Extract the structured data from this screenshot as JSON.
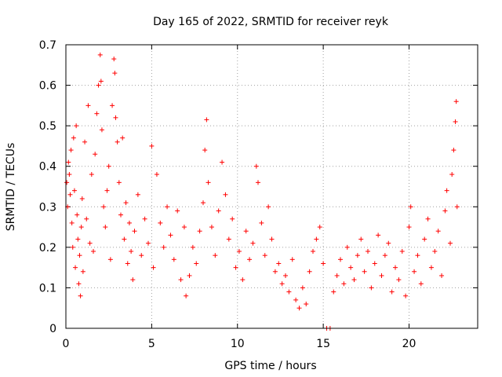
{
  "chart_data": {
    "type": "scatter",
    "title": "Day 165 of 2022, SRMTID for receiver reyk",
    "xlabel": "GPS time / hours",
    "ylabel": "SRMTID / TECUs",
    "xlim": [
      0,
      24
    ],
    "ylim": [
      0,
      0.7
    ],
    "xticks": [
      0,
      5,
      10,
      15,
      20
    ],
    "xtick_labels": [
      "0",
      "5",
      "10",
      "15",
      "20"
    ],
    "yticks": [
      0,
      0.1,
      0.2,
      0.3,
      0.4,
      0.5,
      0.6,
      0.7
    ],
    "ytick_labels": [
      "0",
      "0.1",
      "0.2",
      "0.3",
      "0.4",
      "0.5",
      "0.6",
      "0.7"
    ],
    "grid": true,
    "marker": "+",
    "color": "#ff0000",
    "series": [
      {
        "name": "SRMTID",
        "points": [
          [
            0.05,
            0.36
          ],
          [
            0.1,
            0.3
          ],
          [
            0.15,
            0.41
          ],
          [
            0.2,
            0.38
          ],
          [
            0.25,
            0.33
          ],
          [
            0.3,
            0.44
          ],
          [
            0.35,
            0.26
          ],
          [
            0.4,
            0.2
          ],
          [
            0.45,
            0.47
          ],
          [
            0.5,
            0.34
          ],
          [
            0.55,
            0.15
          ],
          [
            0.6,
            0.5
          ],
          [
            0.65,
            0.28
          ],
          [
            0.7,
            0.22
          ],
          [
            0.75,
            0.11
          ],
          [
            0.8,
            0.18
          ],
          [
            0.85,
            0.08
          ],
          [
            0.9,
            0.25
          ],
          [
            0.95,
            0.32
          ],
          [
            1.0,
            0.14
          ],
          [
            1.1,
            0.46
          ],
          [
            1.2,
            0.27
          ],
          [
            1.3,
            0.55
          ],
          [
            1.4,
            0.21
          ],
          [
            1.5,
            0.38
          ],
          [
            1.6,
            0.19
          ],
          [
            1.7,
            0.43
          ],
          [
            1.8,
            0.53
          ],
          [
            1.9,
            0.6
          ],
          [
            2.0,
            0.675
          ],
          [
            2.05,
            0.61
          ],
          [
            2.1,
            0.49
          ],
          [
            2.2,
            0.3
          ],
          [
            2.3,
            0.25
          ],
          [
            2.4,
            0.34
          ],
          [
            2.5,
            0.4
          ],
          [
            2.6,
            0.17
          ],
          [
            2.7,
            0.55
          ],
          [
            2.8,
            0.665
          ],
          [
            2.85,
            0.63
          ],
          [
            2.9,
            0.52
          ],
          [
            3.0,
            0.46
          ],
          [
            3.1,
            0.36
          ],
          [
            3.2,
            0.28
          ],
          [
            3.3,
            0.47
          ],
          [
            3.4,
            0.22
          ],
          [
            3.5,
            0.31
          ],
          [
            3.6,
            0.16
          ],
          [
            3.7,
            0.26
          ],
          [
            3.8,
            0.19
          ],
          [
            3.9,
            0.12
          ],
          [
            4.0,
            0.24
          ],
          [
            4.2,
            0.33
          ],
          [
            4.4,
            0.18
          ],
          [
            4.6,
            0.27
          ],
          [
            4.8,
            0.21
          ],
          [
            5.0,
            0.45
          ],
          [
            5.1,
            0.15
          ],
          [
            5.3,
            0.38
          ],
          [
            5.5,
            0.26
          ],
          [
            5.7,
            0.2
          ],
          [
            5.9,
            0.3
          ],
          [
            6.1,
            0.23
          ],
          [
            6.3,
            0.17
          ],
          [
            6.5,
            0.29
          ],
          [
            6.7,
            0.12
          ],
          [
            6.9,
            0.25
          ],
          [
            7.0,
            0.08
          ],
          [
            7.2,
            0.13
          ],
          [
            7.4,
            0.2
          ],
          [
            7.6,
            0.16
          ],
          [
            7.8,
            0.24
          ],
          [
            8.0,
            0.31
          ],
          [
            8.1,
            0.44
          ],
          [
            8.2,
            0.515
          ],
          [
            8.3,
            0.36
          ],
          [
            8.5,
            0.25
          ],
          [
            8.7,
            0.18
          ],
          [
            8.9,
            0.29
          ],
          [
            9.1,
            0.41
          ],
          [
            9.3,
            0.33
          ],
          [
            9.5,
            0.22
          ],
          [
            9.7,
            0.27
          ],
          [
            9.9,
            0.15
          ],
          [
            10.1,
            0.19
          ],
          [
            10.3,
            0.12
          ],
          [
            10.5,
            0.24
          ],
          [
            10.7,
            0.17
          ],
          [
            10.9,
            0.21
          ],
          [
            11.1,
            0.4
          ],
          [
            11.2,
            0.36
          ],
          [
            11.4,
            0.26
          ],
          [
            11.6,
            0.18
          ],
          [
            11.8,
            0.3
          ],
          [
            12.0,
            0.22
          ],
          [
            12.2,
            0.14
          ],
          [
            12.4,
            0.16
          ],
          [
            12.6,
            0.11
          ],
          [
            12.8,
            0.13
          ],
          [
            13.0,
            0.09
          ],
          [
            13.2,
            0.17
          ],
          [
            13.4,
            0.07
          ],
          [
            13.6,
            0.05
          ],
          [
            13.8,
            0.1
          ],
          [
            14.0,
            0.06
          ],
          [
            14.2,
            0.14
          ],
          [
            14.4,
            0.19
          ],
          [
            14.6,
            0.22
          ],
          [
            14.8,
            0.25
          ],
          [
            15.0,
            0.16
          ],
          [
            15.2,
            0.0
          ],
          [
            15.4,
            0.0
          ],
          [
            15.6,
            0.09
          ],
          [
            15.8,
            0.13
          ],
          [
            16.0,
            0.17
          ],
          [
            16.2,
            0.11
          ],
          [
            16.4,
            0.2
          ],
          [
            16.6,
            0.15
          ],
          [
            16.8,
            0.12
          ],
          [
            17.0,
            0.18
          ],
          [
            17.2,
            0.22
          ],
          [
            17.4,
            0.14
          ],
          [
            17.6,
            0.19
          ],
          [
            17.8,
            0.1
          ],
          [
            18.0,
            0.16
          ],
          [
            18.2,
            0.23
          ],
          [
            18.4,
            0.13
          ],
          [
            18.6,
            0.18
          ],
          [
            18.8,
            0.21
          ],
          [
            19.0,
            0.09
          ],
          [
            19.2,
            0.15
          ],
          [
            19.4,
            0.12
          ],
          [
            19.6,
            0.19
          ],
          [
            19.8,
            0.08
          ],
          [
            20.0,
            0.25
          ],
          [
            20.1,
            0.3
          ],
          [
            20.3,
            0.14
          ],
          [
            20.5,
            0.18
          ],
          [
            20.7,
            0.11
          ],
          [
            20.9,
            0.22
          ],
          [
            21.1,
            0.27
          ],
          [
            21.3,
            0.15
          ],
          [
            21.5,
            0.19
          ],
          [
            21.7,
            0.24
          ],
          [
            21.9,
            0.13
          ],
          [
            22.1,
            0.29
          ],
          [
            22.2,
            0.34
          ],
          [
            22.4,
            0.21
          ],
          [
            22.5,
            0.38
          ],
          [
            22.6,
            0.44
          ],
          [
            22.7,
            0.51
          ],
          [
            22.75,
            0.56
          ],
          [
            22.8,
            0.3
          ]
        ]
      }
    ]
  }
}
